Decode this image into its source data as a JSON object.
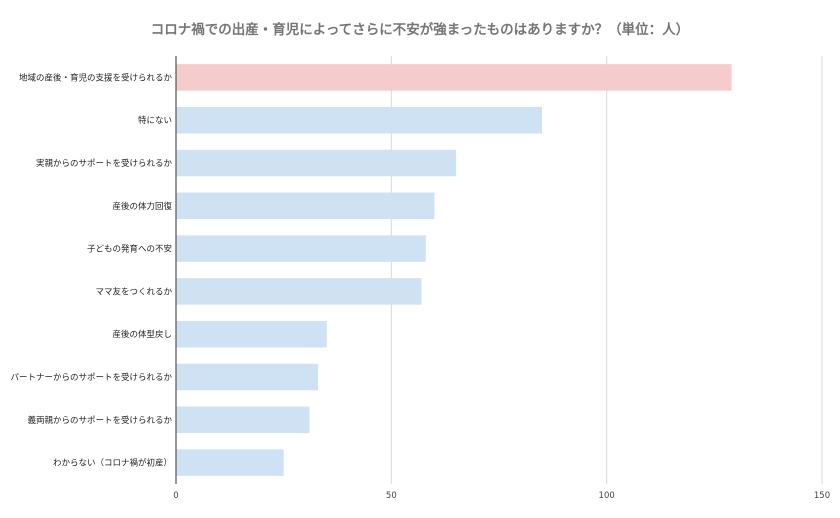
{
  "chart_data": {
    "type": "bar",
    "orientation": "horizontal",
    "title": "コロナ禍での出産・育児によってさらに不安が強まったものはありますか？（単位：人）",
    "categories": [
      "地域の産後・育児の支援を受けられるか",
      "特にない",
      "実親からのサポートを受けられるか",
      "産後の体力回復",
      "子どもの発育への不安",
      "ママ友をつくれるか",
      "産後の体型戻し",
      "パートナーからのサポートを受けられるか",
      "義両親からのサポートを受けられるか",
      "わからない（コロナ禍が初産）"
    ],
    "values": [
      129,
      85,
      65,
      60,
      58,
      57,
      35,
      33,
      31,
      25
    ],
    "xlim": [
      0,
      150
    ],
    "x_ticks": [
      0,
      50,
      100,
      150
    ],
    "grid": "vertical",
    "highlight_color": "#f4cccc",
    "bar_color": "#cfe2f3",
    "xlabel": "",
    "ylabel": ""
  }
}
